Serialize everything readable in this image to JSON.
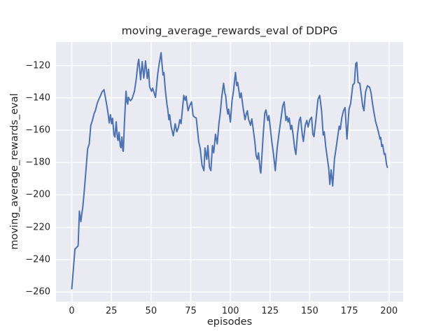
{
  "chart_data": {
    "type": "line",
    "title": "moving_average_rewards_eval of DDPG",
    "xlabel": "episodes",
    "ylabel": "moving_average_rewards_eval",
    "xlim": [
      -9.95,
      208.95
    ],
    "ylim": [
      -266,
      -105.5
    ],
    "xticks": [
      0,
      25,
      50,
      75,
      100,
      125,
      150,
      175,
      200
    ],
    "yticks": [
      -120,
      -140,
      -160,
      -180,
      -200,
      -220,
      -240,
      -260
    ],
    "grid": true,
    "legend": false,
    "colors": {
      "line": "#4c72b0",
      "axes_background": "#eaeaf2",
      "grid": "#ffffff",
      "text": "#262626",
      "figure_background": "#ffffff"
    },
    "series": [
      {
        "name": "moving_average_rewards_eval",
        "x": [
          0,
          1,
          2,
          3,
          4,
          4.8,
          5.7,
          7,
          8,
          9,
          10,
          11,
          12,
          13,
          14,
          15,
          16,
          17,
          18,
          19,
          20.3,
          21.3,
          22.2,
          23,
          23.6,
          24.4,
          25.1,
          25.7,
          26.6,
          27.2,
          28,
          28.8,
          29.2,
          29.8,
          30.6,
          31,
          31.6,
          32.2,
          32.5,
          33.1,
          33.7,
          34.2,
          34.8,
          35.3,
          35.7,
          36.9,
          38,
          39.5,
          40.7,
          41.6,
          42.2,
          43.4,
          44.4,
          45.4,
          46.5,
          47.6,
          48.4,
          49.1,
          50.3,
          51,
          52.8,
          53.5,
          54.2,
          55,
          56.3,
          56.9,
          57.5,
          58.1,
          59,
          60,
          60.5,
          61.2,
          61.7,
          62.7,
          64,
          65.2,
          66.2,
          67.2,
          68.1,
          68.9,
          70.6,
          71.5,
          72.1,
          73.3,
          74.5,
          75.5,
          76.5,
          77.5,
          78.5,
          80,
          81,
          82.1,
          83.3,
          84,
          85.1,
          85.8,
          86.8,
          87.7,
          88.7,
          89.5,
          90.6,
          91.7,
          92.7,
          93.6,
          94.6,
          95.7,
          96.5,
          97,
          97.7,
          98.4,
          98.9,
          100,
          101,
          102,
          103.2,
          104,
          104.6,
          105.3,
          106,
          106.8,
          108,
          109.2,
          110,
          110.7,
          111.4,
          112.7,
          113.5,
          114.2,
          115.4,
          116.2,
          117,
          117.7,
          118.8,
          119.2,
          120.7,
          121.7,
          122.4,
          123.6,
          124.3,
          126.1,
          127.2,
          128.3,
          129.5,
          130.6,
          131.6,
          133,
          133.9,
          135,
          135.7,
          136.4,
          137.1,
          138,
          138.7,
          139.5,
          140.5,
          141.3,
          142.3,
          143.4,
          144.2,
          145.3,
          146,
          147.2,
          148.2,
          149,
          150.1,
          151.2,
          152,
          152.7,
          154.1,
          155.2,
          156.3,
          157.5,
          158.5,
          159.2,
          160.1,
          161,
          162,
          162.7,
          163.5,
          164.5,
          165.6,
          166.8,
          167.8,
          168.6,
          169.3,
          170.2,
          171.3,
          172.3,
          173.5,
          174.8,
          175.8,
          177.2,
          178.2,
          179,
          179.7,
          180.5,
          181.6,
          182.5,
          183.4,
          184.2,
          185.2,
          186.4,
          187.8,
          188.7,
          189.6,
          190.5,
          191.5,
          192.5,
          193.3,
          193.9,
          194.3,
          194.8,
          195.4,
          196,
          197,
          197.6,
          198.4,
          199
        ],
        "y": [
          -258,
          -246,
          -233.5,
          -232.5,
          -231.5,
          -210,
          -216.5,
          -207,
          -196,
          -184,
          -171.5,
          -168.5,
          -157,
          -154,
          -150,
          -147.5,
          -143.5,
          -141,
          -139,
          -136.5,
          -135,
          -140.3,
          -145.4,
          -150.5,
          -155.5,
          -150.4,
          -156,
          -152.6,
          -163,
          -164.2,
          -154.8,
          -165,
          -166.4,
          -161.3,
          -170,
          -170.8,
          -164.2,
          -172.7,
          -173,
          -157.7,
          -145.4,
          -135.9,
          -142.5,
          -143.9,
          -139.6,
          -141.8,
          -140.6,
          -136,
          -128,
          -119.3,
          -116.2,
          -128.8,
          -117.6,
          -127.8,
          -117.2,
          -128.1,
          -122.3,
          -133.2,
          -136,
          -134,
          -139.7,
          -132.4,
          -125.2,
          -119.6,
          -112.1,
          -119.3,
          -125.9,
          -124.4,
          -135.3,
          -144,
          -147,
          -153.5,
          -150.5,
          -158,
          -163.5,
          -156,
          -161,
          -158.5,
          -153.5,
          -156,
          -138.5,
          -141.5,
          -139,
          -148,
          -144.5,
          -142.5,
          -151,
          -152,
          -152.5,
          -167,
          -171.5,
          -181.5,
          -185,
          -171,
          -178,
          -169.5,
          -183,
          -185,
          -169.5,
          -174,
          -162.5,
          -168.5,
          -156.5,
          -149.5,
          -139,
          -131,
          -137,
          -138.5,
          -145.7,
          -150,
          -147,
          -155,
          -142,
          -135.5,
          -124.3,
          -132.5,
          -130.5,
          -135,
          -140,
          -137,
          -146,
          -153.5,
          -150,
          -148,
          -153,
          -157,
          -153,
          -158,
          -167,
          -175.5,
          -178,
          -174,
          -185,
          -186.5,
          -162.5,
          -149.5,
          -147.5,
          -154,
          -151,
          -167,
          -175,
          -185,
          -171,
          -162.5,
          -155,
          -145,
          -142.5,
          -154,
          -151.5,
          -155,
          -152.5,
          -159.5,
          -157,
          -162.5,
          -171,
          -175,
          -162.5,
          -154,
          -152,
          -162.5,
          -167,
          -157,
          -154,
          -158,
          -153.5,
          -152,
          -162.5,
          -164,
          -152,
          -141,
          -138.5,
          -148,
          -163,
          -161,
          -170,
          -176.5,
          -183.5,
          -193.5,
          -184.5,
          -194.5,
          -178,
          -170,
          -163,
          -157.5,
          -159.5,
          -152.5,
          -148,
          -146,
          -165.5,
          -147,
          -143.5,
          -132,
          -131,
          -119,
          -118,
          -130.5,
          -131,
          -138,
          -145,
          -148,
          -136.5,
          -132.5,
          -133.5,
          -137,
          -143.5,
          -149,
          -154.5,
          -158,
          -161,
          -163.5,
          -165.5,
          -164.5,
          -170,
          -169,
          -175,
          -174.5,
          -181,
          -183
        ]
      }
    ]
  }
}
